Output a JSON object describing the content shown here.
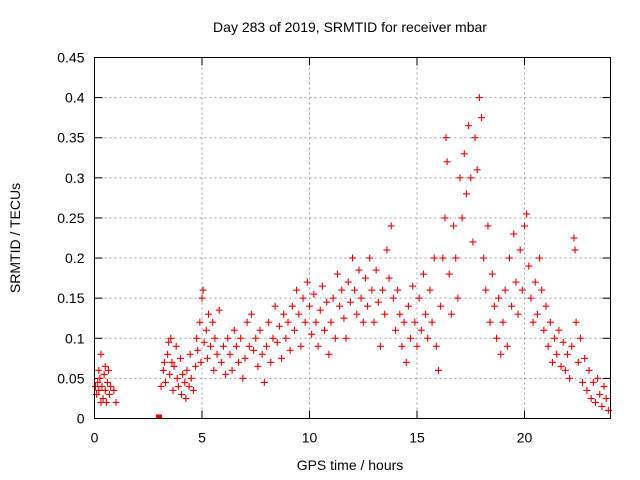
{
  "chart_data": {
    "type": "scatter",
    "title": "Day 283 of 2019, SRMTID for receiver mbar",
    "xlabel": "GPS time / hours",
    "ylabel": "SRMTID / TECUs",
    "xlim": [
      0,
      24
    ],
    "ylim": [
      0,
      0.45
    ],
    "xticks": [
      0,
      5,
      10,
      15,
      20
    ],
    "xtick_labels": [
      "0",
      "5",
      "10",
      "15",
      "20"
    ],
    "yticks": [
      0,
      0.05,
      0.1,
      0.15,
      0.2,
      0.25,
      0.3,
      0.35,
      0.4,
      0.45
    ],
    "ytick_labels": [
      "0",
      "0.05",
      "0.1",
      "0.15",
      "0.2",
      "0.25",
      "0.3",
      "0.35",
      "0.4",
      "0.45"
    ],
    "grid": true,
    "marker": "plus",
    "color": "#ee0000",
    "series": [
      {
        "name": "SRMTID",
        "points": [
          [
            0.05,
            0.04
          ],
          [
            0.1,
            0.03
          ],
          [
            0.15,
            0.045
          ],
          [
            0.2,
            0.035
          ],
          [
            0.25,
            0.05
          ],
          [
            0.3,
            0.08
          ],
          [
            0.3,
            0.02
          ],
          [
            0.35,
            0.04
          ],
          [
            0.4,
            0.025
          ],
          [
            0.45,
            0.055
          ],
          [
            0.5,
            0.035
          ],
          [
            0.55,
            0.02
          ],
          [
            0.6,
            0.045
          ],
          [
            0.65,
            0.06
          ],
          [
            0.7,
            0.03
          ],
          [
            0.75,
            0.04
          ],
          [
            0.2,
            0.06
          ],
          [
            0.5,
            0.065
          ],
          [
            3.0,
            0.0
          ],
          [
            3.1,
            0.04
          ],
          [
            3.2,
            0.06
          ],
          [
            3.25,
            0.07
          ],
          [
            3.3,
            0.045
          ],
          [
            3.4,
            0.08
          ],
          [
            3.45,
            0.095
          ],
          [
            3.5,
            0.055
          ],
          [
            3.55,
            0.1
          ],
          [
            3.6,
            0.07
          ],
          [
            3.65,
            0.035
          ],
          [
            3.7,
            0.065
          ],
          [
            3.8,
            0.09
          ],
          [
            3.85,
            0.05
          ],
          [
            3.9,
            0.04
          ],
          [
            4.0,
            0.075
          ],
          [
            4.05,
            0.03
          ],
          [
            4.1,
            0.055
          ],
          [
            4.2,
            0.045
          ],
          [
            4.25,
            0.025
          ],
          [
            4.3,
            0.06
          ],
          [
            4.4,
            0.04
          ],
          [
            4.45,
            0.08
          ],
          [
            4.5,
            0.05
          ],
          [
            4.6,
            0.035
          ],
          [
            4.7,
            0.065
          ],
          [
            4.75,
            0.1
          ],
          [
            4.8,
            0.085
          ],
          [
            4.9,
            0.12
          ],
          [
            4.95,
            0.07
          ],
          [
            5.0,
            0.15
          ],
          [
            5.05,
            0.16
          ],
          [
            5.1,
            0.095
          ],
          [
            5.2,
            0.11
          ],
          [
            5.25,
            0.075
          ],
          [
            5.3,
            0.13
          ],
          [
            5.4,
            0.09
          ],
          [
            5.5,
            0.12
          ],
          [
            5.55,
            0.06
          ],
          [
            5.6,
            0.1
          ],
          [
            5.7,
            0.08
          ],
          [
            5.8,
            0.135
          ],
          [
            5.9,
            0.07
          ],
          [
            6.0,
            0.09
          ],
          [
            6.1,
            0.055
          ],
          [
            6.2,
            0.1
          ],
          [
            6.3,
            0.08
          ],
          [
            6.4,
            0.06
          ],
          [
            6.5,
            0.11
          ],
          [
            6.6,
            0.09
          ],
          [
            6.7,
            0.07
          ],
          [
            6.8,
            0.1
          ],
          [
            6.9,
            0.05
          ],
          [
            7.0,
            0.075
          ],
          [
            7.1,
            0.12
          ],
          [
            7.2,
            0.09
          ],
          [
            7.3,
            0.13
          ],
          [
            7.4,
            0.085
          ],
          [
            7.5,
            0.1
          ],
          [
            7.6,
            0.065
          ],
          [
            7.7,
            0.11
          ],
          [
            7.8,
            0.08
          ],
          [
            7.9,
            0.045
          ],
          [
            8.0,
            0.09
          ],
          [
            8.1,
            0.12
          ],
          [
            8.2,
            0.07
          ],
          [
            8.3,
            0.1
          ],
          [
            8.4,
            0.14
          ],
          [
            8.5,
            0.095
          ],
          [
            8.6,
            0.115
          ],
          [
            8.7,
            0.075
          ],
          [
            8.8,
            0.13
          ],
          [
            8.9,
            0.1
          ],
          [
            9.0,
            0.12
          ],
          [
            9.1,
            0.085
          ],
          [
            9.2,
            0.14
          ],
          [
            9.3,
            0.11
          ],
          [
            9.4,
            0.16
          ],
          [
            9.5,
            0.13
          ],
          [
            9.6,
            0.09
          ],
          [
            9.7,
            0.15
          ],
          [
            9.8,
            0.12
          ],
          [
            9.9,
            0.17
          ],
          [
            10.0,
            0.14
          ],
          [
            10.1,
            0.105
          ],
          [
            10.2,
            0.155
          ],
          [
            10.3,
            0.12
          ],
          [
            10.4,
            0.09
          ],
          [
            10.5,
            0.135
          ],
          [
            10.6,
            0.165
          ],
          [
            10.7,
            0.11
          ],
          [
            10.8,
            0.145
          ],
          [
            10.9,
            0.08
          ],
          [
            11.0,
            0.12
          ],
          [
            11.1,
            0.15
          ],
          [
            11.2,
            0.1
          ],
          [
            11.3,
            0.18
          ],
          [
            11.4,
            0.14
          ],
          [
            11.5,
            0.16
          ],
          [
            11.6,
            0.125
          ],
          [
            11.7,
            0.1
          ],
          [
            11.8,
            0.17
          ],
          [
            11.9,
            0.145
          ],
          [
            12.0,
            0.2
          ],
          [
            12.1,
            0.16
          ],
          [
            12.2,
            0.13
          ],
          [
            12.3,
            0.185
          ],
          [
            12.4,
            0.15
          ],
          [
            12.5,
            0.12
          ],
          [
            12.6,
            0.175
          ],
          [
            12.7,
            0.14
          ],
          [
            12.8,
            0.2
          ],
          [
            12.9,
            0.16
          ],
          [
            13.0,
            0.12
          ],
          [
            13.1,
            0.185
          ],
          [
            13.2,
            0.145
          ],
          [
            13.3,
            0.09
          ],
          [
            13.4,
            0.16
          ],
          [
            13.5,
            0.13
          ],
          [
            13.6,
            0.21
          ],
          [
            13.7,
            0.175
          ],
          [
            13.8,
            0.24
          ],
          [
            13.9,
            0.15
          ],
          [
            14.0,
            0.11
          ],
          [
            14.1,
            0.16
          ],
          [
            14.2,
            0.13
          ],
          [
            14.3,
            0.09
          ],
          [
            14.4,
            0.12
          ],
          [
            14.5,
            0.07
          ],
          [
            14.6,
            0.14
          ],
          [
            14.7,
            0.1
          ],
          [
            14.8,
            0.165
          ],
          [
            14.9,
            0.12
          ],
          [
            15.0,
            0.09
          ],
          [
            15.1,
            0.15
          ],
          [
            15.2,
            0.11
          ],
          [
            15.3,
            0.18
          ],
          [
            15.4,
            0.13
          ],
          [
            15.5,
            0.1
          ],
          [
            15.6,
            0.16
          ],
          [
            15.7,
            0.12
          ],
          [
            15.8,
            0.2
          ],
          [
            15.9,
            0.09
          ],
          [
            16.0,
            0.06
          ],
          [
            16.1,
            0.14
          ],
          [
            16.2,
            0.2
          ],
          [
            16.3,
            0.25
          ],
          [
            16.35,
            0.35
          ],
          [
            16.4,
            0.32
          ],
          [
            16.5,
            0.18
          ],
          [
            16.6,
            0.13
          ],
          [
            16.7,
            0.24
          ],
          [
            16.8,
            0.2
          ],
          [
            16.9,
            0.15
          ],
          [
            17.0,
            0.3
          ],
          [
            17.1,
            0.25
          ],
          [
            17.2,
            0.33
          ],
          [
            17.3,
            0.28
          ],
          [
            17.4,
            0.365
          ],
          [
            17.5,
            0.3
          ],
          [
            17.6,
            0.22
          ],
          [
            17.7,
            0.35
          ],
          [
            17.8,
            0.31
          ],
          [
            17.9,
            0.4
          ],
          [
            18.0,
            0.375
          ],
          [
            18.1,
            0.2
          ],
          [
            18.2,
            0.16
          ],
          [
            18.3,
            0.24
          ],
          [
            18.4,
            0.12
          ],
          [
            18.5,
            0.18
          ],
          [
            18.6,
            0.14
          ],
          [
            18.7,
            0.1
          ],
          [
            18.8,
            0.15
          ],
          [
            18.9,
            0.08
          ],
          [
            19.0,
            0.12
          ],
          [
            19.1,
            0.16
          ],
          [
            19.2,
            0.09
          ],
          [
            19.3,
            0.2
          ],
          [
            19.4,
            0.14
          ],
          [
            19.5,
            0.23
          ],
          [
            19.6,
            0.17
          ],
          [
            19.7,
            0.13
          ],
          [
            19.8,
            0.21
          ],
          [
            19.9,
            0.16
          ],
          [
            20.0,
            0.24
          ],
          [
            20.1,
            0.255
          ],
          [
            20.2,
            0.19
          ],
          [
            20.3,
            0.15
          ],
          [
            20.4,
            0.12
          ],
          [
            20.5,
            0.17
          ],
          [
            20.6,
            0.13
          ],
          [
            20.7,
            0.2
          ],
          [
            20.8,
            0.16
          ],
          [
            20.9,
            0.11
          ],
          [
            21.0,
            0.14
          ],
          [
            21.1,
            0.09
          ],
          [
            21.2,
            0.12
          ],
          [
            21.3,
            0.07
          ],
          [
            21.4,
            0.1
          ],
          [
            21.5,
            0.08
          ],
          [
            21.6,
            0.11
          ],
          [
            21.7,
            0.065
          ],
          [
            21.8,
            0.095
          ],
          [
            21.9,
            0.06
          ],
          [
            22.0,
            0.08
          ],
          [
            22.1,
            0.05
          ],
          [
            22.2,
            0.09
          ],
          [
            22.3,
            0.225
          ],
          [
            22.35,
            0.21
          ],
          [
            22.4,
            0.12
          ],
          [
            22.5,
            0.07
          ],
          [
            22.6,
            0.1
          ],
          [
            22.7,
            0.045
          ],
          [
            22.8,
            0.075
          ],
          [
            22.9,
            0.035
          ],
          [
            23.0,
            0.06
          ],
          [
            23.1,
            0.025
          ],
          [
            23.2,
            0.045
          ],
          [
            23.3,
            0.02
          ],
          [
            23.4,
            0.05
          ],
          [
            23.5,
            0.03
          ],
          [
            23.6,
            0.015
          ],
          [
            23.7,
            0.04
          ],
          [
            23.8,
            0.025
          ],
          [
            23.9,
            0.01
          ],
          [
            1.0,
            0.02
          ],
          [
            0.9,
            0.035
          ]
        ]
      }
    ]
  }
}
